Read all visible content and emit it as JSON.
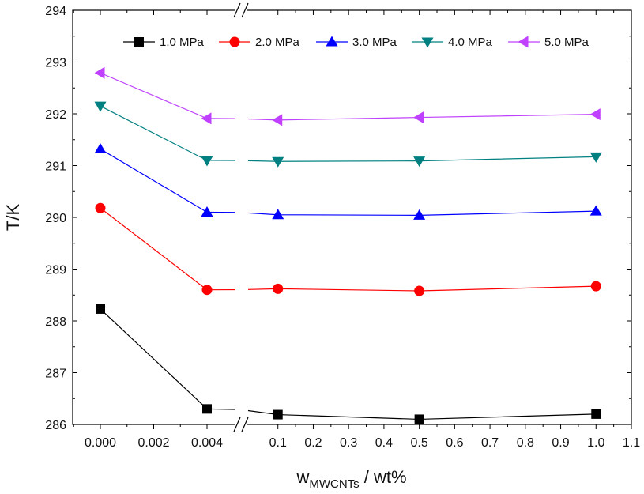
{
  "chart_data": {
    "type": "line",
    "ylabel": "T/K",
    "xlabel": {
      "main": "w",
      "sub": "MWCNTs",
      "suffix": " / wt%"
    },
    "ylim": [
      286,
      294
    ],
    "y_ticks": [
      "286",
      "287",
      "288",
      "289",
      "290",
      "291",
      "292",
      "293",
      "294"
    ],
    "x_axis": {
      "broken": true,
      "segment1": {
        "range": [
          0.0,
          0.004
        ],
        "ticks": [
          "0.000",
          "0.002",
          "0.004"
        ]
      },
      "segment2": {
        "range": [
          0.0,
          1.1
        ],
        "ticks": [
          "0.1",
          "0.2",
          "0.3",
          "0.4",
          "0.5",
          "0.6",
          "0.7",
          "0.8",
          "0.9",
          "1.0",
          "1.1"
        ]
      }
    },
    "x": [
      "0.000",
      "0.004",
      "0.1",
      "0.5",
      "1.0"
    ],
    "series": [
      {
        "name": "1.0 MPa",
        "marker": "square",
        "color": "#000000",
        "values": [
          288.23,
          286.3,
          286.19,
          286.1,
          286.2
        ]
      },
      {
        "name": "2.0 MPa",
        "marker": "circle",
        "color": "#ff0000",
        "values": [
          290.18,
          288.6,
          288.62,
          288.58,
          288.67
        ]
      },
      {
        "name": "3.0 MPa",
        "marker": "triangle-up",
        "color": "#0000ff",
        "values": [
          291.32,
          290.1,
          290.05,
          290.04,
          290.12
        ]
      },
      {
        "name": "4.0 MPa",
        "marker": "triangle-down",
        "color": "#008080",
        "values": [
          292.15,
          291.1,
          291.08,
          291.09,
          291.17
        ]
      },
      {
        "name": "5.0 MPa",
        "marker": "triangle-left",
        "color": "#bf40ff",
        "values": [
          292.79,
          291.91,
          291.88,
          291.93,
          291.99
        ]
      }
    ],
    "legend_position": "top",
    "grid": false
  }
}
